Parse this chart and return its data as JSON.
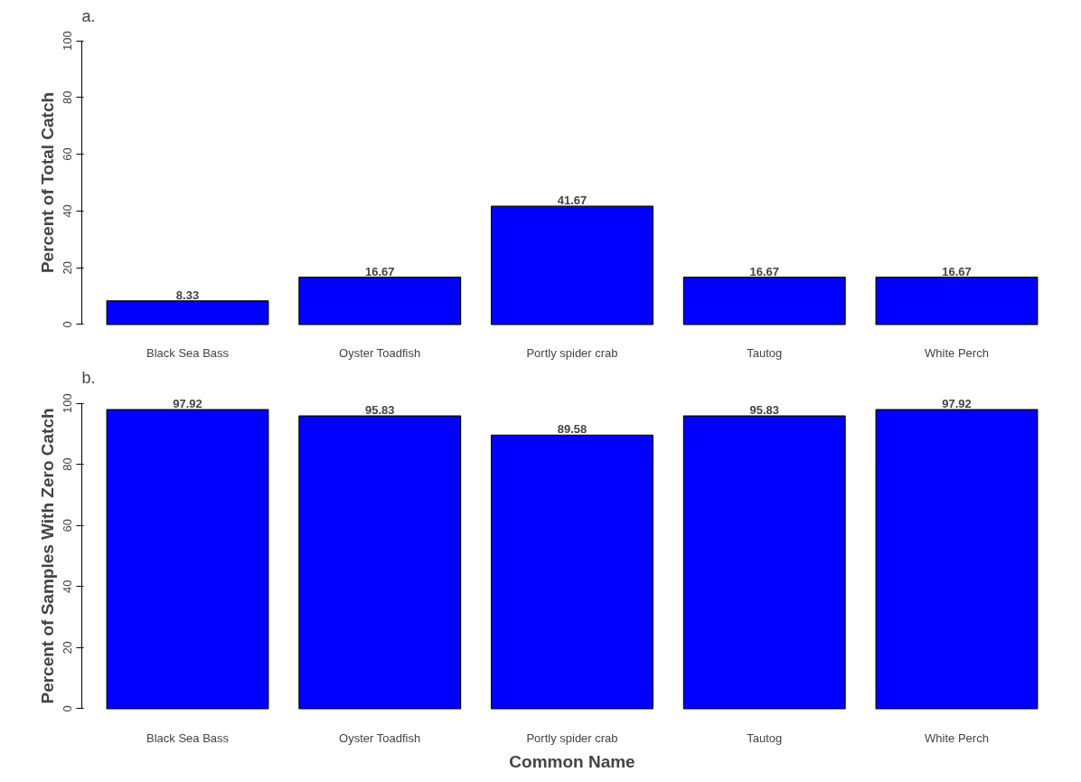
{
  "chart_data": [
    {
      "type": "bar",
      "title": "a.",
      "ylabel": "Percent of Total Catch",
      "categories": [
        "Black Sea Bass",
        "Oyster Toadfish",
        "Portly spider crab",
        "Tautog",
        "White Perch"
      ],
      "values": [
        8.33,
        16.67,
        41.67,
        16.67,
        16.67
      ],
      "color": "#0000ff",
      "ylim": [
        0,
        100
      ],
      "yticks": [
        0,
        20,
        40,
        60,
        80,
        100
      ],
      "data_labels": true,
      "grid": false
    },
    {
      "type": "bar",
      "title": "b.",
      "ylabel": "Percent of Samples With Zero Catch",
      "xlabel": "Common Name",
      "categories": [
        "Black Sea Bass",
        "Oyster Toadfish",
        "Portly spider crab",
        "Tautog",
        "White Perch"
      ],
      "values": [
        97.92,
        95.83,
        89.58,
        95.83,
        97.92
      ],
      "color": "#0000ff",
      "ylim": [
        0,
        100
      ],
      "yticks": [
        0,
        20,
        40,
        60,
        80,
        100
      ],
      "data_labels": true,
      "grid": false
    }
  ]
}
